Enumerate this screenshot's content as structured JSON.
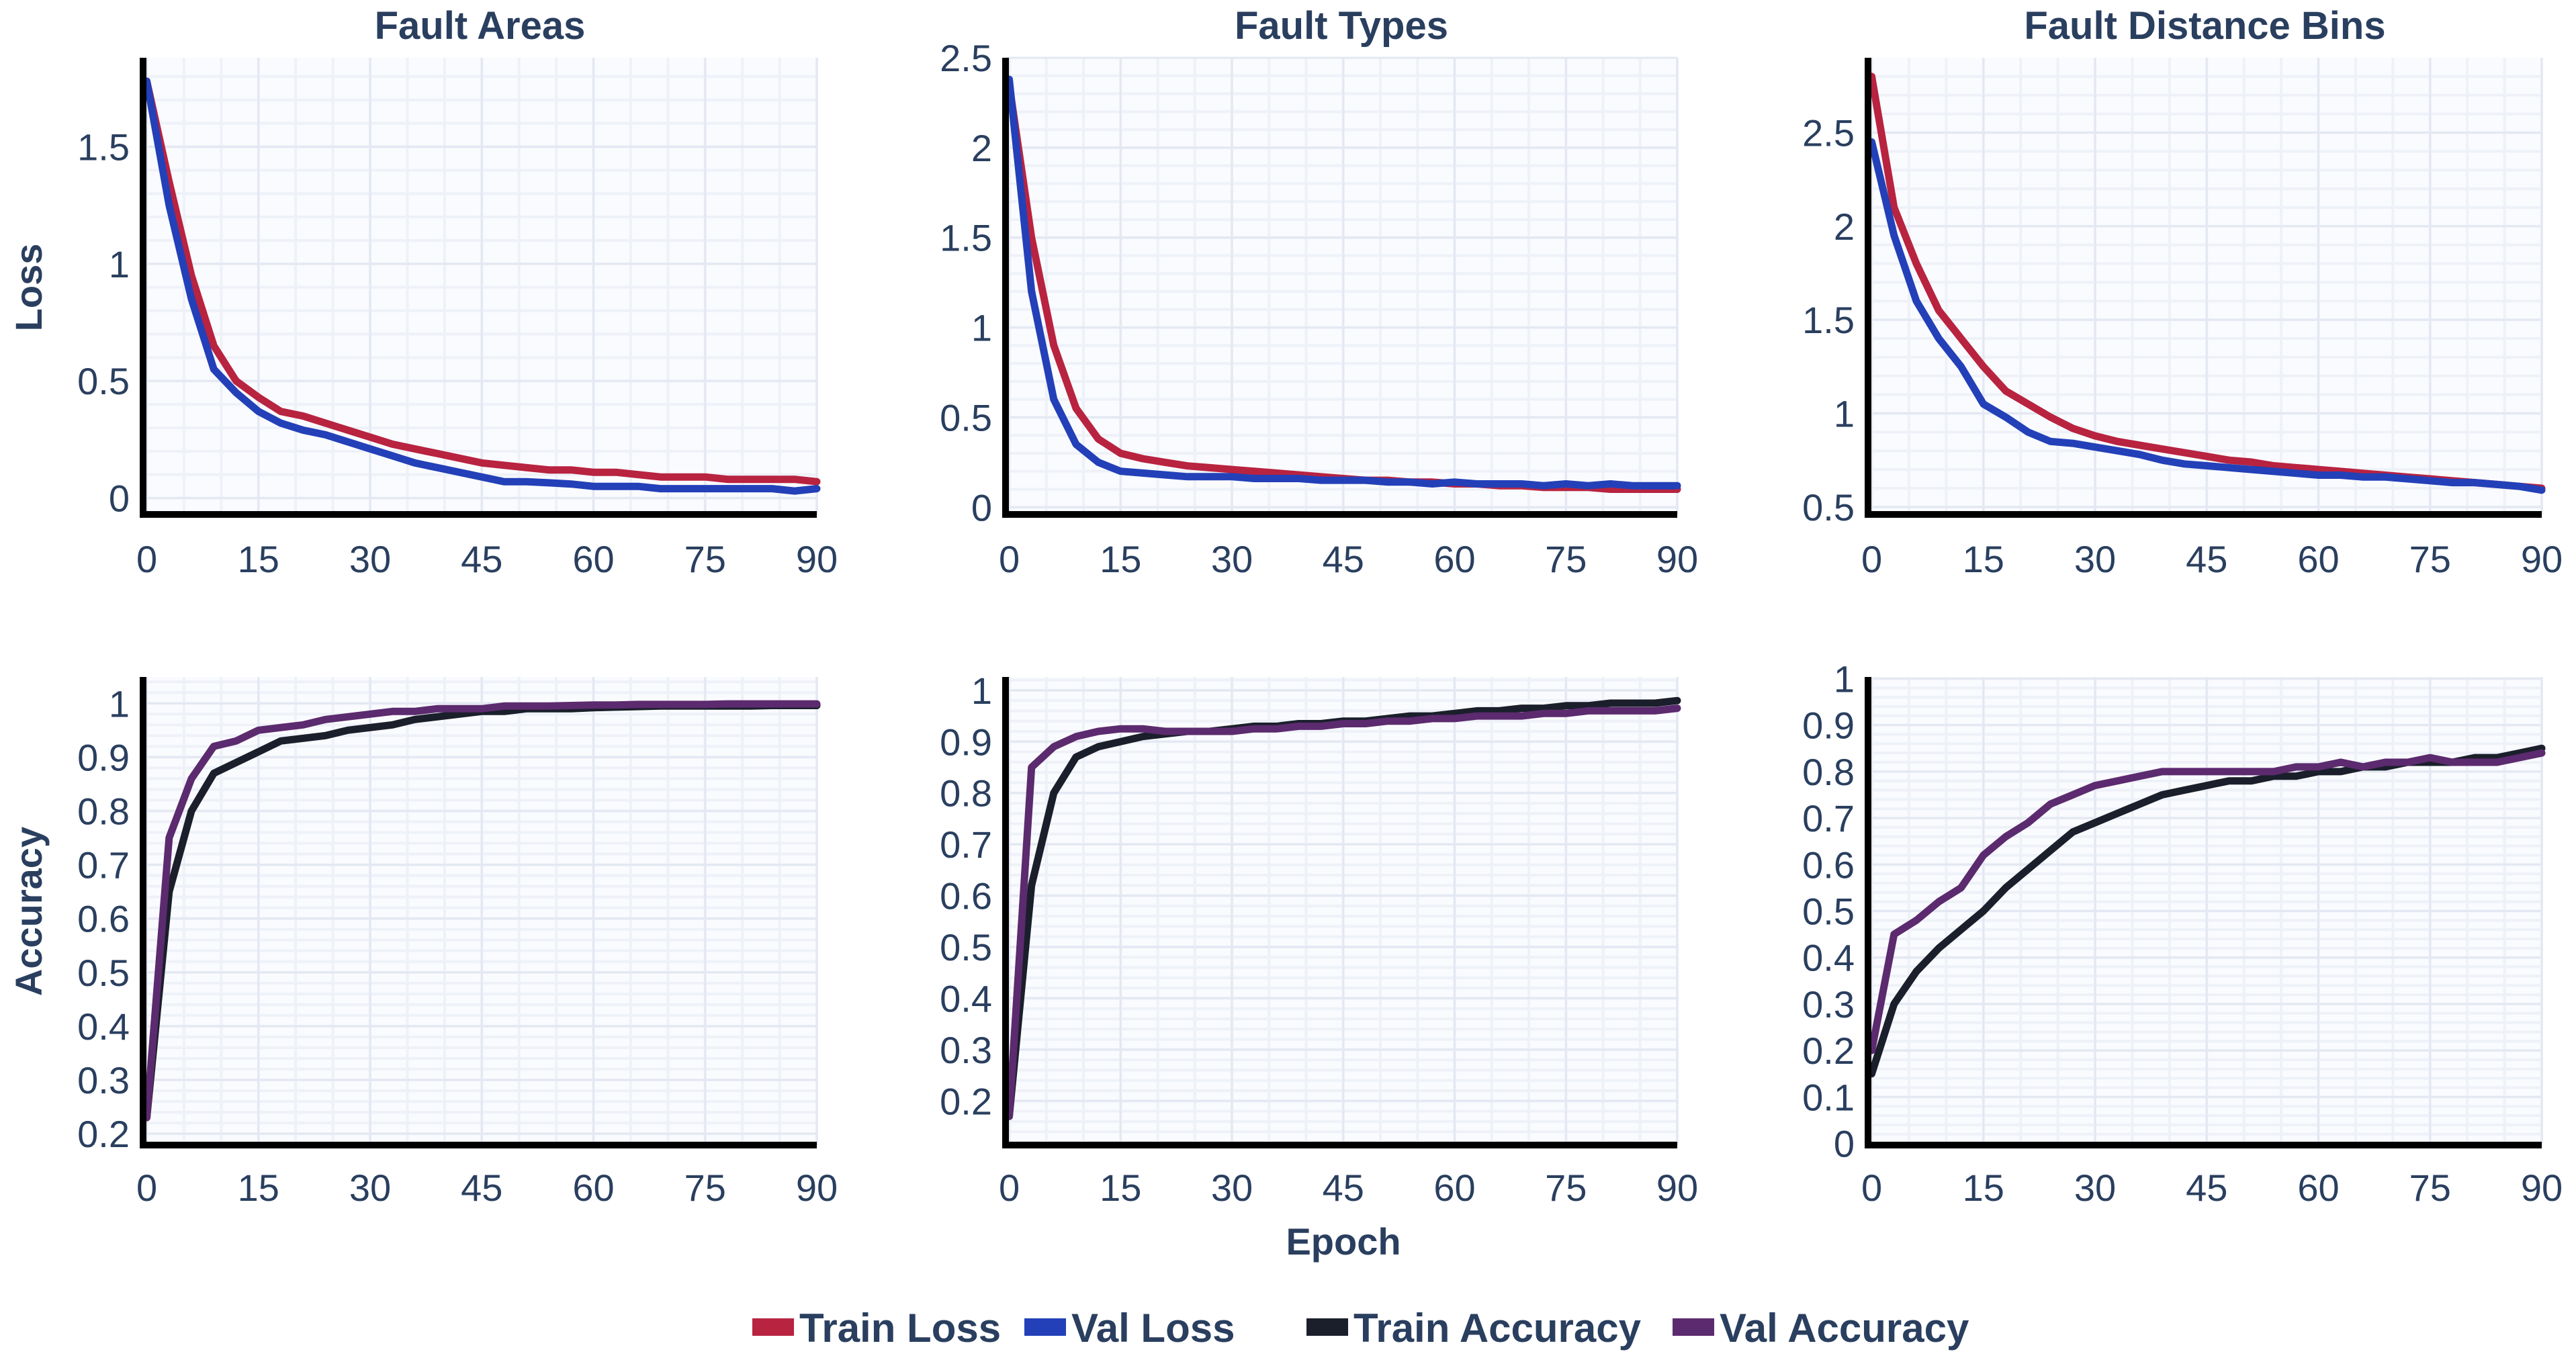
{
  "chart_data": {
    "type": "line",
    "x_label": "Epoch",
    "row_labels": [
      "Loss",
      "Accuracy"
    ],
    "legend": {
      "placement": "bottom-center",
      "entries": [
        {
          "name": "Train Loss",
          "color": "#b82340"
        },
        {
          "name": "Val Loss",
          "color": "#2340b8"
        },
        {
          "name": "Train Accuracy",
          "color": "#1a1f2b"
        },
        {
          "name": "Val Accuracy",
          "color": "#5c2a6e"
        }
      ]
    },
    "x": [
      0,
      3,
      6,
      9,
      12,
      15,
      18,
      21,
      24,
      27,
      30,
      33,
      36,
      39,
      42,
      45,
      48,
      51,
      54,
      57,
      60,
      63,
      66,
      69,
      72,
      75,
      78,
      81,
      84,
      87,
      90
    ],
    "xlim": [
      -0.5,
      90
    ],
    "xticks": [
      0,
      15,
      30,
      45,
      60,
      75,
      90
    ],
    "grid": true,
    "panels": [
      {
        "title": "Fault Areas",
        "row": 0,
        "col": 0,
        "ylim": [
          -0.07,
          1.88
        ],
        "yticks": [
          0,
          0.5,
          1,
          1.5
        ],
        "series": [
          {
            "name": "Train Loss",
            "values": [
              1.78,
              1.35,
              0.95,
              0.65,
              0.5,
              0.43,
              0.37,
              0.35,
              0.32,
              0.29,
              0.26,
              0.23,
              0.21,
              0.19,
              0.17,
              0.15,
              0.14,
              0.13,
              0.12,
              0.12,
              0.11,
              0.11,
              0.1,
              0.09,
              0.09,
              0.09,
              0.08,
              0.08,
              0.08,
              0.08,
              0.07
            ]
          },
          {
            "name": "Val Loss",
            "values": [
              1.78,
              1.25,
              0.85,
              0.55,
              0.45,
              0.37,
              0.32,
              0.29,
              0.27,
              0.24,
              0.21,
              0.18,
              0.15,
              0.13,
              0.11,
              0.09,
              0.07,
              0.07,
              0.065,
              0.06,
              0.05,
              0.05,
              0.05,
              0.04,
              0.04,
              0.04,
              0.04,
              0.04,
              0.04,
              0.03,
              0.04
            ]
          }
        ]
      },
      {
        "title": "Fault Types",
        "row": 0,
        "col": 1,
        "ylim": [
          -0.04,
          2.5
        ],
        "yticks": [
          0,
          0.5,
          1,
          1.5,
          2,
          2.5
        ],
        "series": [
          {
            "name": "Train Loss",
            "values": [
              2.35,
              1.5,
              0.9,
              0.55,
              0.38,
              0.3,
              0.27,
              0.25,
              0.23,
              0.22,
              0.21,
              0.2,
              0.19,
              0.18,
              0.17,
              0.16,
              0.15,
              0.15,
              0.14,
              0.14,
              0.13,
              0.13,
              0.12,
              0.12,
              0.11,
              0.11,
              0.11,
              0.1,
              0.1,
              0.1,
              0.1
            ]
          },
          {
            "name": "Val Loss",
            "values": [
              2.38,
              1.2,
              0.6,
              0.35,
              0.25,
              0.2,
              0.19,
              0.18,
              0.17,
              0.17,
              0.17,
              0.16,
              0.16,
              0.16,
              0.15,
              0.15,
              0.15,
              0.14,
              0.14,
              0.13,
              0.14,
              0.13,
              0.13,
              0.13,
              0.12,
              0.13,
              0.12,
              0.13,
              0.12,
              0.12,
              0.12
            ]
          }
        ]
      },
      {
        "title": "Fault Distance Bins",
        "row": 0,
        "col": 2,
        "ylim": [
          0.46,
          2.9
        ],
        "yticks": [
          0.5,
          1,
          1.5,
          2,
          2.5
        ],
        "series": [
          {
            "name": "Train Loss",
            "values": [
              2.8,
              2.1,
              1.8,
              1.55,
              1.4,
              1.25,
              1.12,
              1.05,
              0.98,
              0.92,
              0.88,
              0.85,
              0.83,
              0.81,
              0.79,
              0.77,
              0.75,
              0.74,
              0.72,
              0.71,
              0.7,
              0.69,
              0.68,
              0.67,
              0.66,
              0.65,
              0.64,
              0.63,
              0.62,
              0.61,
              0.6
            ]
          },
          {
            "name": "Val Loss",
            "values": [
              2.45,
              1.95,
              1.6,
              1.4,
              1.25,
              1.05,
              0.98,
              0.9,
              0.85,
              0.84,
              0.82,
              0.8,
              0.78,
              0.75,
              0.73,
              0.72,
              0.71,
              0.7,
              0.69,
              0.68,
              0.67,
              0.67,
              0.66,
              0.66,
              0.65,
              0.64,
              0.63,
              0.63,
              0.62,
              0.61,
              0.59
            ]
          }
        ]
      },
      {
        "title": "",
        "row": 1,
        "col": 0,
        "ylim": [
          0.179,
          1.049
        ],
        "yticks": [
          0.2,
          0.3,
          0.4,
          0.5,
          0.6,
          0.7,
          0.8,
          0.9,
          1
        ],
        "series": [
          {
            "name": "Train Accuracy",
            "values": [
              0.23,
              0.65,
              0.8,
              0.87,
              0.89,
              0.91,
              0.93,
              0.935,
              0.94,
              0.95,
              0.955,
              0.96,
              0.97,
              0.975,
              0.98,
              0.985,
              0.985,
              0.99,
              0.99,
              0.99,
              0.992,
              0.993,
              0.994,
              0.995,
              0.995,
              0.995,
              0.995,
              0.995,
              0.996,
              0.996,
              0.996
            ]
          },
          {
            "name": "Val Accuracy",
            "values": [
              0.23,
              0.75,
              0.86,
              0.92,
              0.93,
              0.95,
              0.955,
              0.96,
              0.97,
              0.975,
              0.98,
              0.985,
              0.985,
              0.99,
              0.99,
              0.99,
              0.995,
              0.995,
              0.995,
              0.996,
              0.997,
              0.997,
              0.998,
              0.998,
              0.998,
              0.998,
              0.999,
              0.999,
              0.999,
              0.999,
              0.999
            ]
          }
        ]
      },
      {
        "title": "",
        "row": 1,
        "col": 1,
        "ylim": [
          0.114,
          1.026
        ],
        "yticks": [
          0.2,
          0.3,
          0.4,
          0.5,
          0.6,
          0.7,
          0.8,
          0.9,
          1
        ],
        "series": [
          {
            "name": "Train Accuracy",
            "values": [
              0.17,
              0.62,
              0.8,
              0.87,
              0.89,
              0.9,
              0.91,
              0.915,
              0.92,
              0.92,
              0.925,
              0.93,
              0.93,
              0.935,
              0.935,
              0.94,
              0.94,
              0.945,
              0.95,
              0.95,
              0.955,
              0.96,
              0.96,
              0.965,
              0.965,
              0.97,
              0.97,
              0.975,
              0.975,
              0.975,
              0.98
            ]
          },
          {
            "name": "Val Accuracy",
            "values": [
              0.17,
              0.85,
              0.89,
              0.91,
              0.92,
              0.925,
              0.925,
              0.92,
              0.92,
              0.92,
              0.92,
              0.925,
              0.925,
              0.93,
              0.93,
              0.935,
              0.935,
              0.94,
              0.94,
              0.945,
              0.945,
              0.95,
              0.95,
              0.95,
              0.955,
              0.955,
              0.96,
              0.96,
              0.96,
              0.96,
              0.965
            ]
          }
        ]
      },
      {
        "title": "",
        "row": 1,
        "col": 2,
        "ylim": [
          -0.0035,
          1.0035
        ],
        "yticks": [
          0,
          0.1,
          0.2,
          0.3,
          0.4,
          0.5,
          0.6,
          0.7,
          0.8,
          0.9,
          1
        ],
        "series": [
          {
            "name": "Train Accuracy",
            "values": [
              0.15,
              0.3,
              0.37,
              0.42,
              0.46,
              0.5,
              0.55,
              0.59,
              0.63,
              0.67,
              0.69,
              0.71,
              0.73,
              0.75,
              0.76,
              0.77,
              0.78,
              0.78,
              0.79,
              0.79,
              0.8,
              0.8,
              0.81,
              0.81,
              0.82,
              0.82,
              0.82,
              0.83,
              0.83,
              0.84,
              0.85
            ]
          },
          {
            "name": "Val Accuracy",
            "values": [
              0.2,
              0.45,
              0.48,
              0.52,
              0.55,
              0.62,
              0.66,
              0.69,
              0.73,
              0.75,
              0.77,
              0.78,
              0.79,
              0.8,
              0.8,
              0.8,
              0.8,
              0.8,
              0.8,
              0.81,
              0.81,
              0.82,
              0.81,
              0.82,
              0.82,
              0.83,
              0.82,
              0.82,
              0.82,
              0.83,
              0.84
            ]
          }
        ]
      }
    ]
  }
}
